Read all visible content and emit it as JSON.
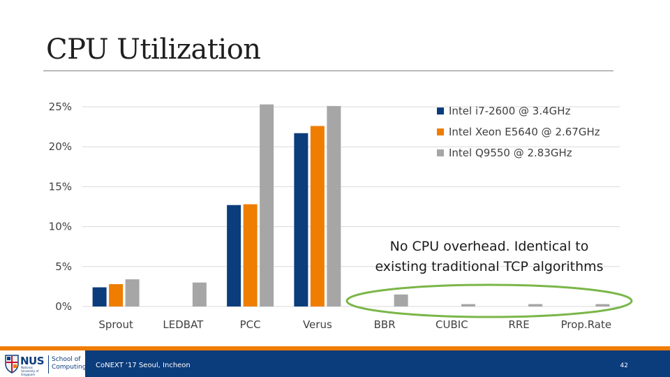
{
  "slide": {
    "title": "CPU Utilization",
    "annotation_line1": "No CPU overhead. Identical to",
    "annotation_line2": "existing traditional TCP algorithms",
    "footer_text": "CoNEXT ‘17 Seoul, Incheon",
    "page_number": "42",
    "logo_text": "NUS",
    "logo_subtext": "National University of Singapore",
    "school_line1": "School of",
    "school_line2": "Computing"
  },
  "colors": {
    "series_1": "#0b3c7c",
    "series_2": "#ef7d00",
    "series_3": "#a6a6a6",
    "ellipse": "#7ab648",
    "grid": "#d9d9d9",
    "footer": "#0b3c7c",
    "stripe": "#ef7d00"
  },
  "chart_data": {
    "type": "bar",
    "title": "",
    "xlabel": "",
    "ylabel": "",
    "ylim": [
      0,
      25
    ],
    "yticks": [
      0,
      5,
      10,
      15,
      20,
      25
    ],
    "ytick_labels": [
      "0%",
      "5%",
      "10%",
      "15%",
      "20%",
      "25%"
    ],
    "categories": [
      "Sprout",
      "LEDBAT",
      "PCC",
      "Verus",
      "BBR",
      "CUBIC",
      "RRE",
      "Prop.Rate"
    ],
    "series": [
      {
        "name": "Intel i7-2600 @ 3.4GHz",
        "values": [
          2.4,
          0,
          12.7,
          21.7,
          0,
          0,
          0,
          0
        ]
      },
      {
        "name": "Intel Xeon E5640 @ 2.67GHz",
        "values": [
          2.8,
          0,
          12.8,
          22.6,
          0,
          0,
          0,
          0
        ]
      },
      {
        "name": "Intel Q9550 @ 2.83GHz",
        "values": [
          3.4,
          3.0,
          25.3,
          25.1,
          1.5,
          0.3,
          0.3,
          0.3
        ]
      }
    ],
    "legend": "top-right",
    "grid": true
  }
}
